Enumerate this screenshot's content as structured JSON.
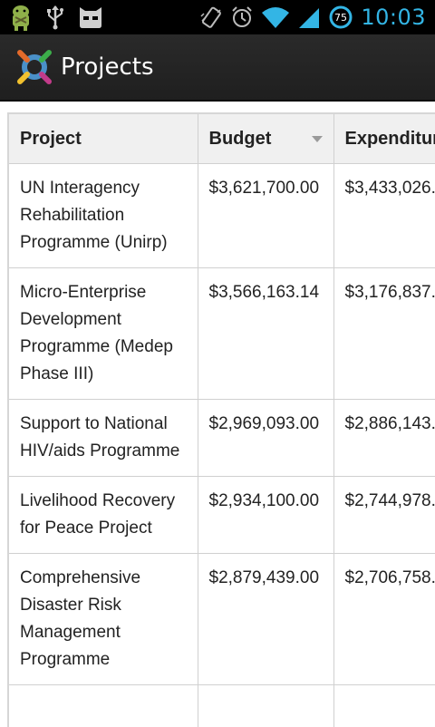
{
  "status_bar": {
    "time": "10:03",
    "battery_level": "75",
    "icons": [
      "android-debug-icon",
      "usb-icon",
      "cyanogen-icon",
      "vibrate-icon",
      "alarm-icon",
      "wifi-icon",
      "signal-icon",
      "battery-icon"
    ]
  },
  "action_bar": {
    "title": "Projects",
    "logo_icon": "app-logo-icon"
  },
  "table": {
    "columns": [
      {
        "label": "Project"
      },
      {
        "label": "Budget",
        "sort": "descending"
      },
      {
        "label": "Expenditure"
      }
    ],
    "rows": [
      {
        "project": "UN Interagency Rehabilitation Programme (Unirp)",
        "budget": "$3,621,700.00",
        "expenditure": "$3,433,026."
      },
      {
        "project": "Micro-Enterprise Development Programme (Medep Phase III)",
        "budget": "$3,566,163.14",
        "expenditure": "$3,176,837."
      },
      {
        "project": "Support to National HIV/aids Programme",
        "budget": "$2,969,093.00",
        "expenditure": "$2,886,143."
      },
      {
        "project": "Livelihood Recovery for Peace Project",
        "budget": "$2,934,100.00",
        "expenditure": "$2,744,978."
      },
      {
        "project": "Comprehensive Disaster Risk Management Programme",
        "budget": "$2,879,439.00",
        "expenditure": "$2,706,758."
      },
      {
        "project": "",
        "budget": "",
        "expenditure": ""
      }
    ]
  },
  "colors": {
    "accent": "#33b5e5",
    "status_bar_bg": "#000000",
    "action_bar_bg": "#222222",
    "header_bg": "#f0f0f0"
  }
}
